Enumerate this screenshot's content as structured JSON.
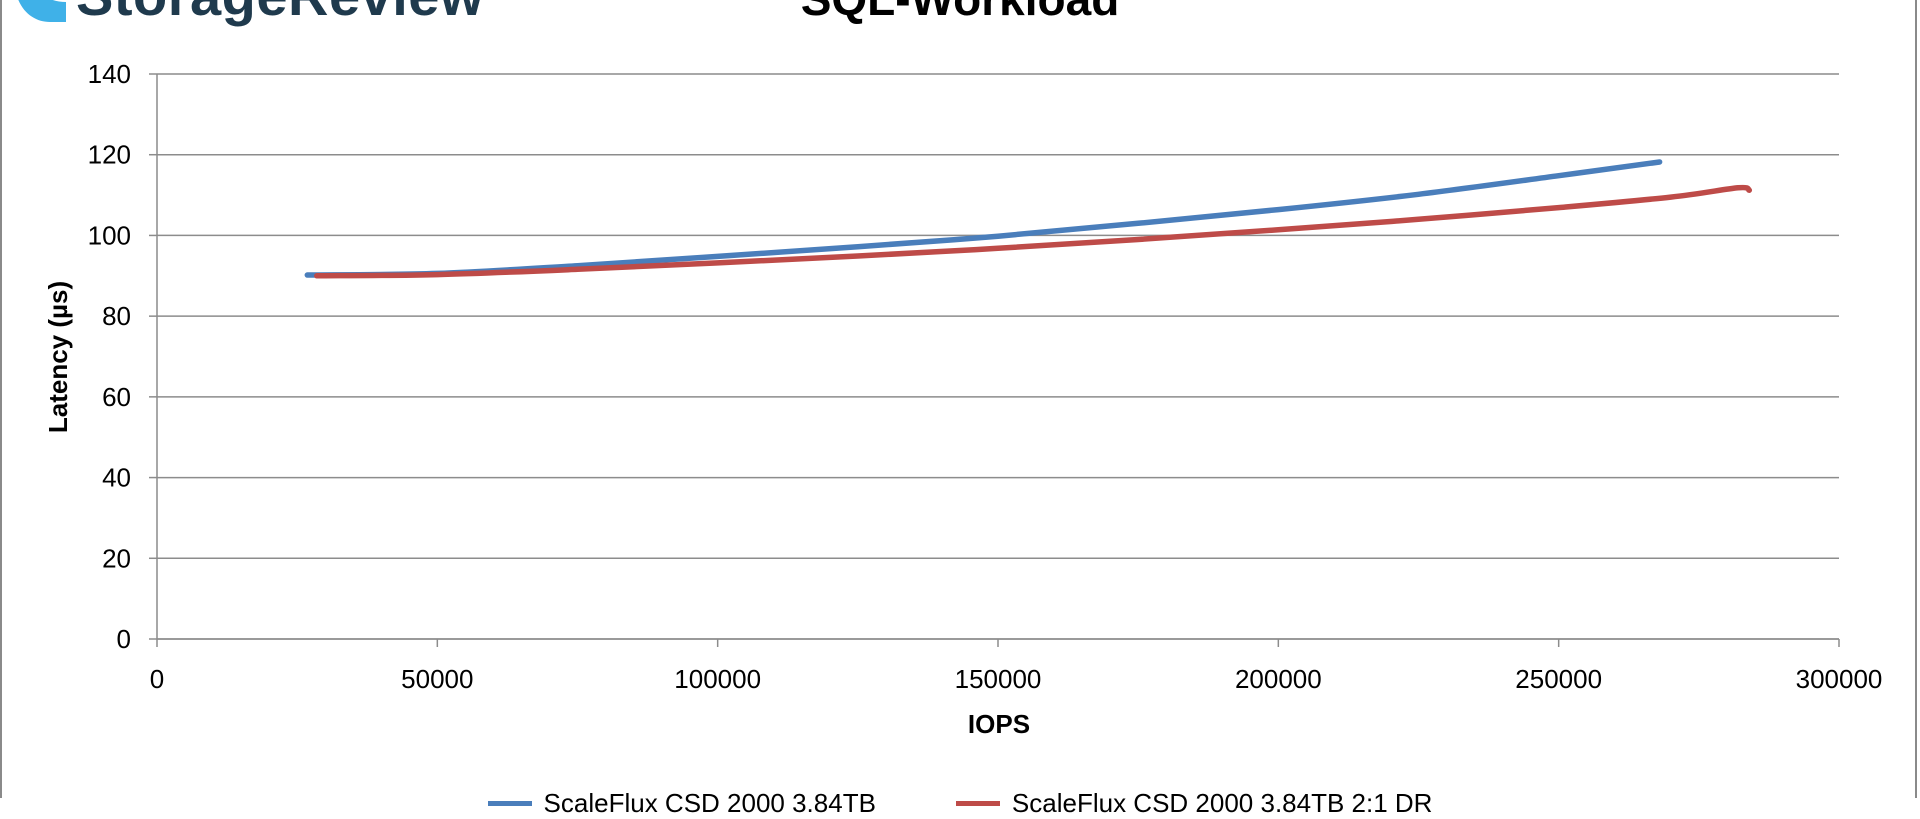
{
  "logo": {
    "text": "StorageReview"
  },
  "colors": {
    "series1": "#4a7ebb",
    "series2": "#be4b48",
    "grid": "#8c8c8c",
    "logo_mark": "#3fb1e8"
  },
  "chart_data": {
    "type": "line",
    "title": "SQL-Workload",
    "xlabel": "IOPS",
    "ylabel": "Latency (µs)",
    "xlim": [
      0,
      300000
    ],
    "ylim": [
      0,
      140
    ],
    "xticks": [
      0,
      50000,
      100000,
      150000,
      200000,
      250000,
      300000
    ],
    "yticks": [
      0,
      20,
      40,
      60,
      80,
      100,
      120,
      140
    ],
    "grid": true,
    "legend_position": "bottom",
    "series": [
      {
        "name": "ScaleFlux CSD 2000 3.84TB",
        "x": [
          26800,
          50000,
          75000,
          100000,
          125000,
          150000,
          175000,
          200000,
          225000,
          250000,
          268000
        ],
        "y": [
          90.2,
          90.6,
          92.5,
          94.8,
          97.2,
          99.8,
          103.0,
          106.4,
          110.2,
          114.8,
          118.2
        ]
      },
      {
        "name": "ScaleFlux CSD 2000 3.84TB 2:1 DR",
        "x": [
          28500,
          50000,
          75000,
          100000,
          125000,
          150000,
          175000,
          200000,
          225000,
          250000,
          270000,
          282000,
          284000
        ],
        "y": [
          90.0,
          90.3,
          91.6,
          93.2,
          94.9,
          96.8,
          99.0,
          101.4,
          104.0,
          106.9,
          109.5,
          111.8,
          111.2
        ]
      }
    ]
  }
}
